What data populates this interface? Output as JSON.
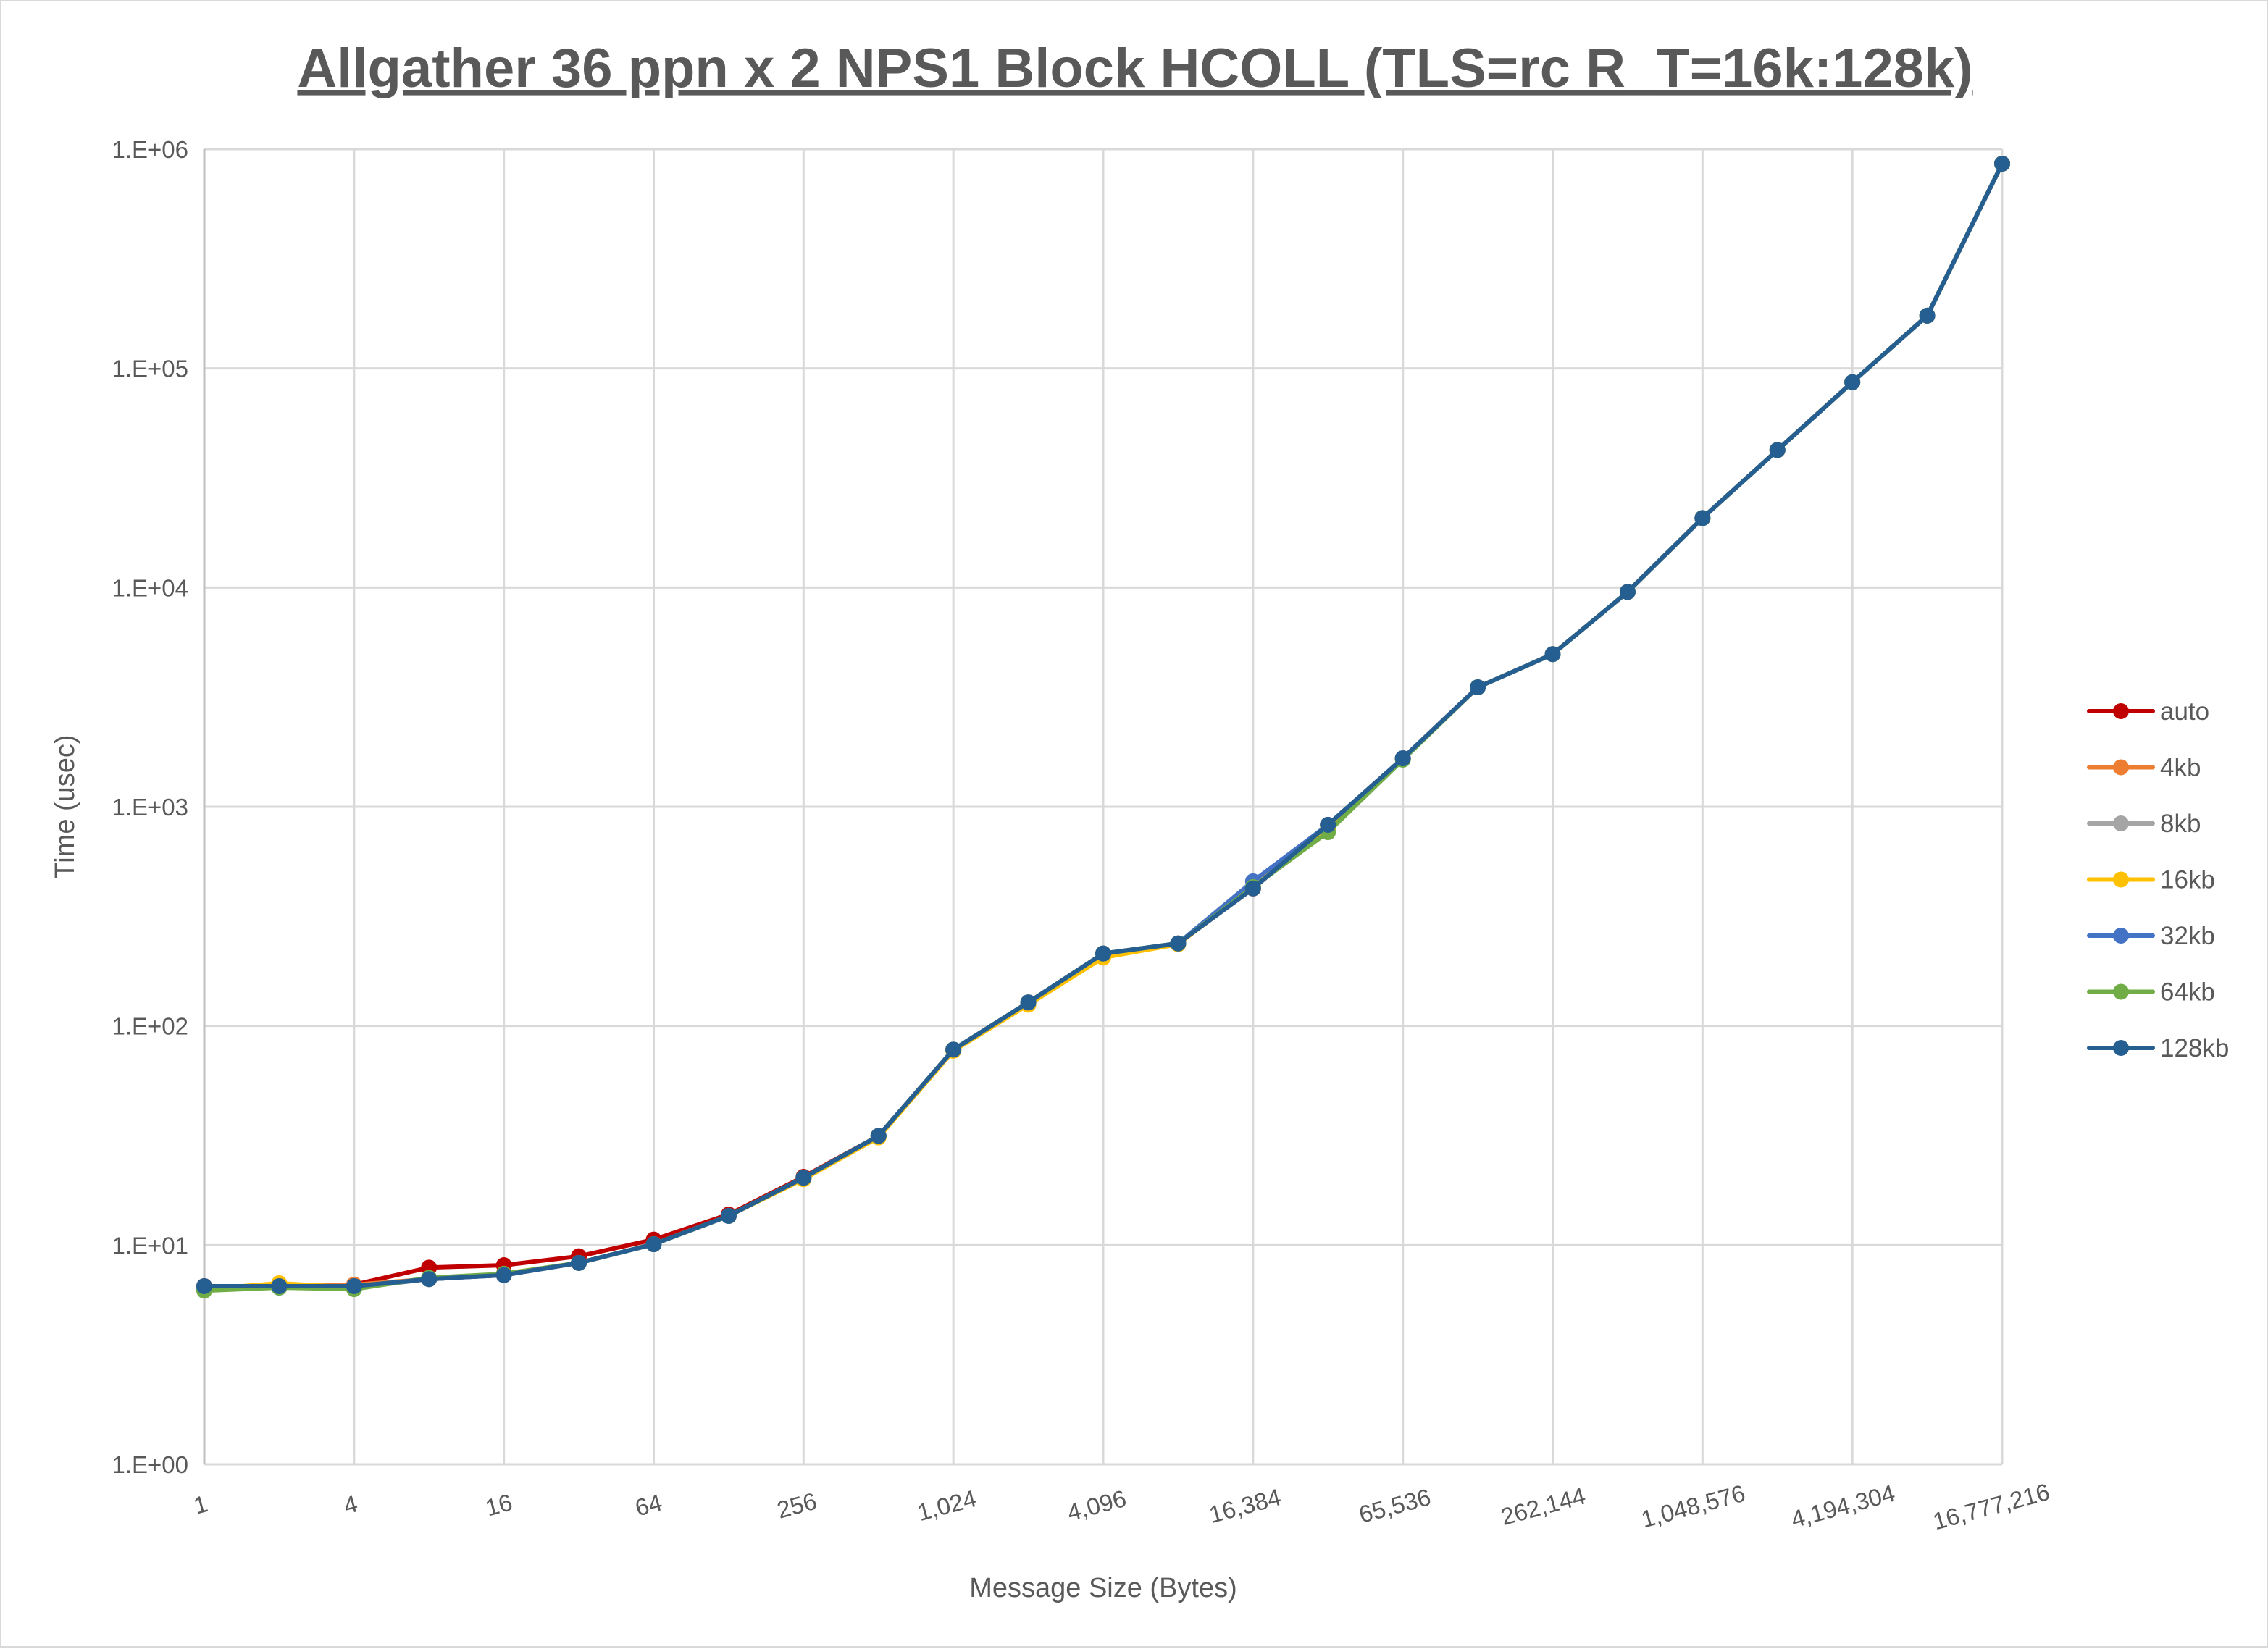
{
  "chart_data": {
    "type": "line",
    "title": "Allgather 36 ppn x 2 NPS1 Block HCOLL (TLS=rc R_T=16k:128k)",
    "xlabel": "Message Size (Bytes)",
    "ylabel": "Time (usec)",
    "x_scale": "log2",
    "y_scale": "log10",
    "ylim": [
      1,
      1000000
    ],
    "grid": true,
    "legend_position": "right",
    "x": [
      1,
      2,
      4,
      8,
      16,
      32,
      64,
      128,
      256,
      512,
      1024,
      2048,
      4096,
      8192,
      16384,
      32768,
      65536,
      131072,
      262144,
      524288,
      1048576,
      2097152,
      4194304,
      8388608,
      16777216
    ],
    "x_tick_labels": [
      "1",
      "4",
      "16",
      "64",
      "256",
      "1,024",
      "4,096",
      "16,384",
      "65,536",
      "262,144",
      "1,048,576",
      "4,194,304",
      "16,777,216"
    ],
    "y_tick_labels": [
      "1.E+00",
      "1.E+01",
      "1.E+02",
      "1.E+03",
      "1.E+04",
      "1.E+05",
      "1.E+06"
    ],
    "series": [
      {
        "name": "auto",
        "color": "#c00000",
        "values": [
          6.5,
          6.5,
          6.6,
          7.9,
          8.1,
          8.9,
          10.6,
          13.8,
          20.5,
          31.5,
          78,
          128,
          214,
          238,
          424,
          827,
          1664,
          3508,
          4970,
          9550,
          20750,
          42400,
          86500,
          174000,
          859000
        ]
      },
      {
        "name": "4kb",
        "color": "#ed7d31",
        "values": [
          6.4,
          6.5,
          6.6,
          7.0,
          7.3,
          8.3,
          10.1,
          13.6,
          20.3,
          31.5,
          78,
          128,
          214,
          238,
          424,
          827,
          1664,
          3508,
          4970,
          9550,
          20750,
          42400,
          86500,
          174000,
          859000
        ]
      },
      {
        "name": "8kb",
        "color": "#a5a5a5",
        "values": [
          6.4,
          6.5,
          6.5,
          7.0,
          7.3,
          8.3,
          10.1,
          13.6,
          20.3,
          31.5,
          78,
          128,
          214,
          238,
          424,
          827,
          1664,
          3508,
          4970,
          9550,
          20750,
          42400,
          86500,
          174000,
          859000
        ]
      },
      {
        "name": "16kb",
        "color": "#ffc000",
        "values": [
          6.3,
          6.7,
          6.4,
          7.0,
          7.4,
          8.3,
          10.1,
          13.6,
          20.0,
          31.0,
          77,
          125,
          205,
          236,
          430,
          800,
          1650,
          3508,
          4970,
          9550,
          20750,
          42400,
          86500,
          174000,
          859000
        ]
      },
      {
        "name": "32kb",
        "color": "#4472c4",
        "values": [
          6.3,
          6.4,
          6.4,
          7.0,
          7.3,
          8.3,
          10.1,
          13.6,
          20.3,
          31.5,
          78,
          128,
          214,
          238,
          457,
          827,
          1664,
          3508,
          4970,
          9550,
          20750,
          42400,
          86500,
          174000,
          859000
        ]
      },
      {
        "name": "64kb",
        "color": "#70ad47",
        "values": [
          6.2,
          6.4,
          6.3,
          7.1,
          7.4,
          8.3,
          10.1,
          13.6,
          20.3,
          31.5,
          78,
          128,
          214,
          238,
          430,
          766,
          1640,
          3508,
          4970,
          9550,
          20750,
          42400,
          86500,
          174000,
          859000
        ]
      },
      {
        "name": "128kb",
        "color": "#255e91",
        "values": [
          6.5,
          6.5,
          6.5,
          7.0,
          7.3,
          8.3,
          10.1,
          13.6,
          20.3,
          31.5,
          78,
          128,
          214,
          238,
          424,
          827,
          1664,
          3508,
          4970,
          9550,
          20750,
          42400,
          86500,
          174000,
          859000
        ]
      }
    ]
  }
}
